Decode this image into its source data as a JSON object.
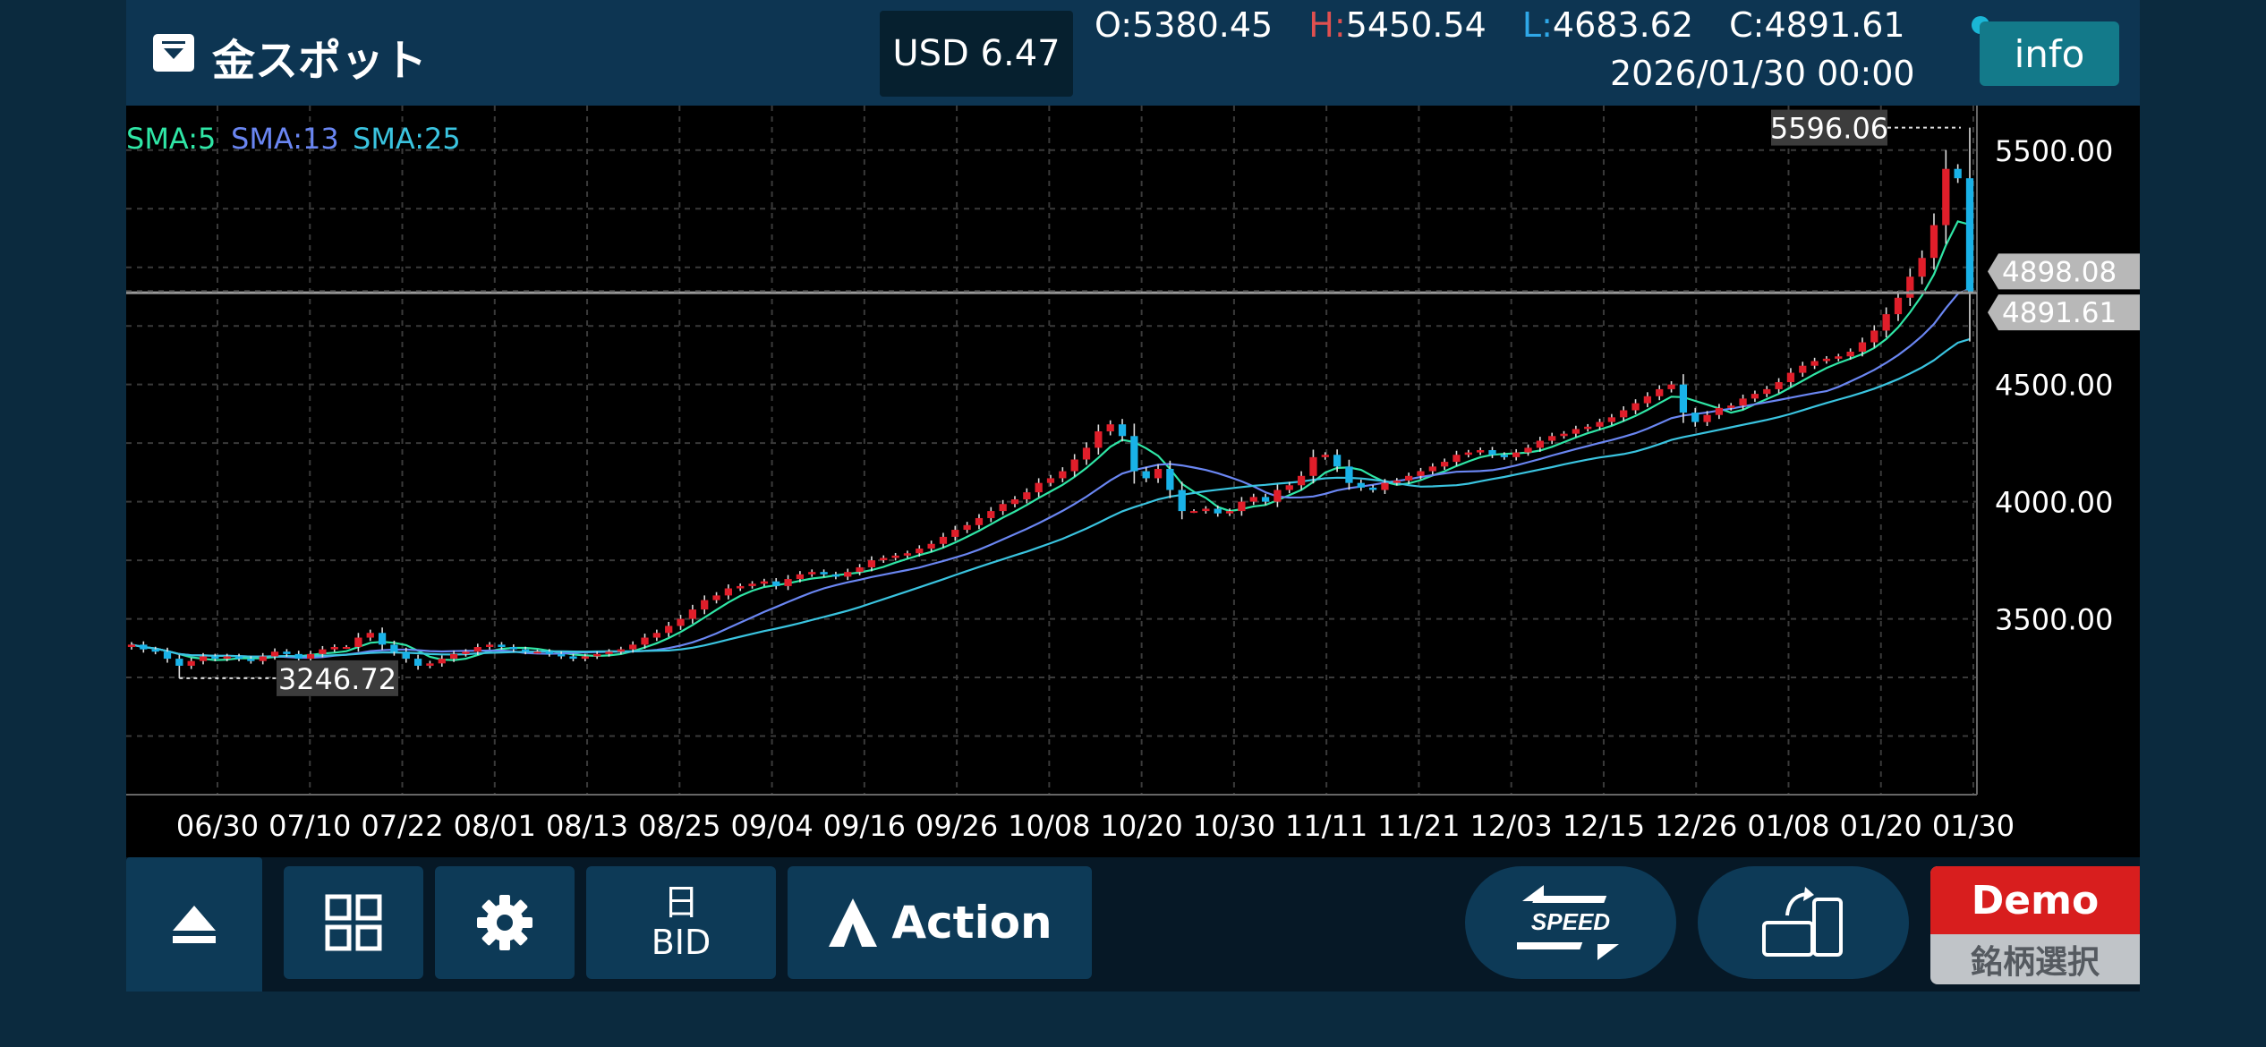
{
  "header": {
    "symbol_name": "金スポット",
    "spread_text": "USD 6.47",
    "open_label": "O:",
    "open_value": "5380.45",
    "high_label": "H:",
    "high_value": "5450.54",
    "low_label": "L:",
    "low_value": "4683.62",
    "close_label": "C:",
    "close_value": "4891.61",
    "datetime": "2026/01/30  00:00",
    "info_label": "info"
  },
  "colors": {
    "bull": "#e01e2a",
    "bear": "#19b2e8",
    "sma5": "#2fe6a6",
    "sma13": "#6a86f2",
    "sma25": "#3ac4e0",
    "grid": "#3a3a3a",
    "price_line": "#9a9a9a"
  },
  "chart_data": {
    "type": "candlestick",
    "timeframe": "日",
    "y_ticks": [
      3500,
      4000,
      4500,
      5500
    ],
    "y_tick_labels": [
      "3500.00",
      "4000.00",
      "4500.00",
      "5500.00"
    ],
    "ylim": [
      2750,
      5690
    ],
    "x_tick_labels": [
      "06/30",
      "07/10",
      "07/22",
      "08/01",
      "08/13",
      "08/25",
      "09/04",
      "09/16",
      "09/26",
      "10/08",
      "10/20",
      "10/30",
      "11/11",
      "11/21",
      "12/03",
      "12/15",
      "12/26",
      "01/08",
      "01/20",
      "01/30"
    ],
    "legend": [
      {
        "name": "SMA:5",
        "color": "#2fe6a6"
      },
      {
        "name": "SMA:13",
        "color": "#6a86f2"
      },
      {
        "name": "SMA:25",
        "color": "#3ac4e0"
      }
    ],
    "max_marker": {
      "label": "5596.06",
      "value": 5596.06
    },
    "min_marker": {
      "label": "3246.72",
      "value": 3246.72
    },
    "bid_marker": {
      "label": "4898.08",
      "value": 4898.08
    },
    "current_marker": {
      "label": "4891.61",
      "value": 4891.61
    },
    "close_series": [
      3390,
      3370,
      3360,
      3330,
      3300,
      3320,
      3340,
      3330,
      3340,
      3330,
      3320,
      3340,
      3360,
      3350,
      3330,
      3350,
      3370,
      3380,
      3380,
      3420,
      3440,
      3390,
      3360,
      3330,
      3300,
      3310,
      3330,
      3350,
      3360,
      3380,
      3390,
      3380,
      3370,
      3360,
      3360,
      3350,
      3340,
      3330,
      3340,
      3350,
      3360,
      3370,
      3390,
      3420,
      3440,
      3470,
      3500,
      3540,
      3580,
      3600,
      3630,
      3640,
      3650,
      3660,
      3640,
      3670,
      3690,
      3700,
      3690,
      3680,
      3700,
      3720,
      3750,
      3760,
      3770,
      3780,
      3800,
      3820,
      3850,
      3880,
      3900,
      3930,
      3960,
      3990,
      4010,
      4040,
      4080,
      4100,
      4130,
      4180,
      4230,
      4300,
      4330,
      4280,
      4130,
      4100,
      4140,
      4050,
      3960,
      3960,
      3970,
      3950,
      3960,
      4000,
      4020,
      4000,
      4050,
      4070,
      4110,
      4190,
      4200,
      4150,
      4080,
      4060,
      4050,
      4080,
      4090,
      4110,
      4130,
      4150,
      4170,
      4200,
      4210,
      4220,
      4200,
      4190,
      4210,
      4230,
      4260,
      4280,
      4290,
      4310,
      4320,
      4340,
      4360,
      4390,
      4420,
      4450,
      4480,
      4500,
      4380,
      4340,
      4370,
      4400,
      4410,
      4440,
      4460,
      4480,
      4510,
      4550,
      4580,
      4600,
      4610,
      4620,
      4640,
      4680,
      4730,
      4800,
      4870,
      4960,
      5040,
      5180,
      5420,
      5380,
      4891.61
    ]
  },
  "toolbar": {
    "timeframe_top": "日",
    "timeframe_bottom": "BID",
    "action_label": "Action",
    "speed_label": "SPEED",
    "demo_label": "Demo",
    "symbol_select_label": "銘柄選択"
  }
}
